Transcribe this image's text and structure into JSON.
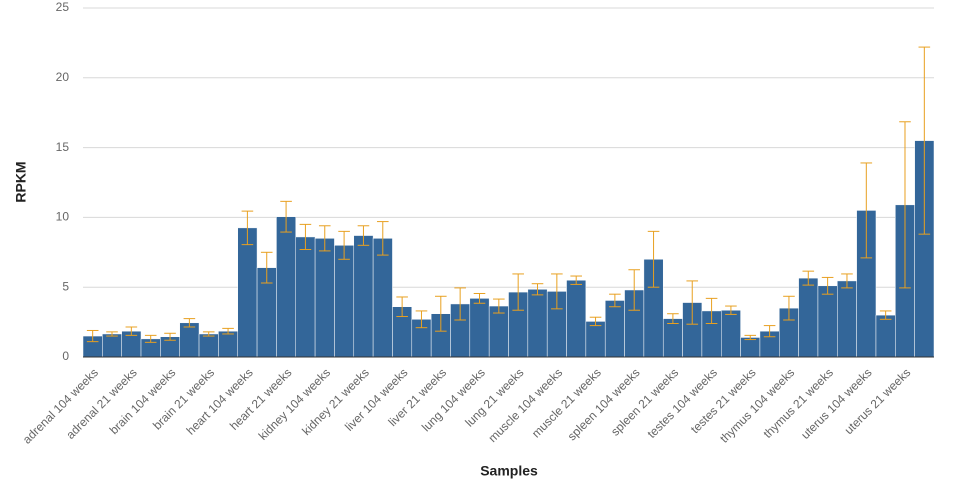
{
  "chart_data": {
    "type": "bar",
    "xlabel": "Samples",
    "ylabel": "RPKM",
    "categories": [
      "adrenal 104 weeks",
      null,
      "adrenal 21 weeks",
      null,
      "brain 104 weeks",
      null,
      "brain 21 weeks",
      null,
      "heart 104 weeks",
      null,
      "heart 21 weeks",
      null,
      "kidney 104 weeks",
      null,
      "kidney 21 weeks",
      null,
      "liver 104 weeks",
      null,
      "liver 21 weeks",
      null,
      "lung 104 weeks",
      null,
      "lung 21 weeks",
      null,
      "muscle 104 weeks",
      null,
      "muscle 21 weeks",
      null,
      "spleen 104 weeks",
      null,
      "spleen 21 weeks",
      null,
      "testes 104 weeks",
      null,
      "testes 21 weeks",
      null,
      "thymus 104 weeks",
      null,
      "thymus 21 weeks",
      null,
      "uterus 104 weeks",
      null,
      "uterus 21 weeks",
      null
    ],
    "values": [
      1.5,
      1.65,
      1.85,
      1.3,
      1.45,
      2.45,
      1.65,
      1.85,
      9.25,
      6.4,
      10.05,
      8.6,
      8.5,
      8.0,
      8.7,
      8.5,
      3.6,
      2.7,
      3.1,
      3.8,
      4.2,
      3.65,
      4.65,
      4.85,
      4.7,
      5.5,
      2.55,
      4.05,
      4.8,
      7.0,
      2.75,
      3.9,
      3.3,
      3.35,
      1.4,
      1.85,
      3.5,
      5.65,
      5.1,
      5.45,
      10.5,
      3.0,
      10.9,
      15.5
    ],
    "errors": [
      0.4,
      0.15,
      0.3,
      0.25,
      0.25,
      0.3,
      0.15,
      0.2,
      1.2,
      1.1,
      1.1,
      0.9,
      0.9,
      1.0,
      0.7,
      1.2,
      0.7,
      0.6,
      1.25,
      1.15,
      0.35,
      0.5,
      1.3,
      0.4,
      1.25,
      0.3,
      0.3,
      0.45,
      1.45,
      2.0,
      0.35,
      1.55,
      0.9,
      0.3,
      0.15,
      0.4,
      0.85,
      0.5,
      0.6,
      0.5,
      3.4,
      0.3,
      5.95,
      6.7
    ],
    "color": "#336699",
    "error_color": "#e8a020",
    "ylim": [
      0,
      25
    ],
    "yticks": [
      0,
      5,
      10,
      15,
      20,
      25
    ],
    "grid": true
  }
}
